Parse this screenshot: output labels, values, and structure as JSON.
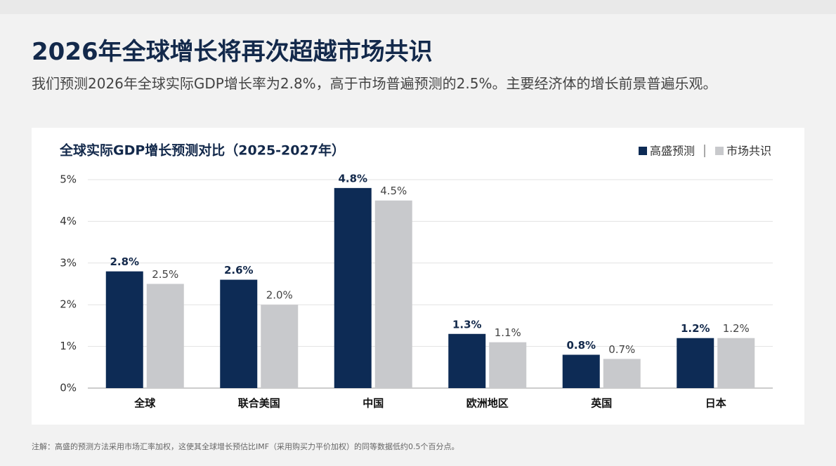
{
  "header": {
    "title": "2026年全球增长将再次超越市场共识",
    "subtitle": "我们预测2026年全球实际GDP增长率为2.8%，高于市场普遍预测的2.5%。主要经济体的增长前景普遍乐观。"
  },
  "chart_data": {
    "type": "bar",
    "title": "全球实际GDP增长预测对比（2025-2027年）",
    "categories": [
      "全球",
      "联合美国",
      "中国",
      "欧洲地区",
      "英国",
      "日本"
    ],
    "series": [
      {
        "name": "高盛预测",
        "color": "#0d2b55",
        "values": [
          2.8,
          2.6,
          4.8,
          1.3,
          0.8,
          1.2
        ],
        "value_labels": [
          "2.8%",
          "2.6%",
          "4.8%",
          "1.3%",
          "0.8%",
          "1.2%"
        ]
      },
      {
        "name": "市场共识",
        "color": "#c8c9cc",
        "values": [
          2.5,
          2.0,
          4.5,
          1.1,
          0.7,
          1.2
        ],
        "value_labels": [
          "2.5%",
          "2.0%",
          "4.5%",
          "1.1%",
          "0.7%",
          "1.2%"
        ]
      }
    ],
    "ylim": [
      0,
      5
    ],
    "yticks": [
      {
        "value": 0,
        "label": "0%"
      },
      {
        "value": 1,
        "label": "1%"
      },
      {
        "value": 2,
        "label": "2%"
      },
      {
        "value": 3,
        "label": "3%"
      },
      {
        "value": 4,
        "label": "4%"
      },
      {
        "value": 5,
        "label": "5%"
      }
    ],
    "grid": true,
    "legend": "top-right"
  },
  "note": "注解：高盛的预测方法采用市场汇率加权，这使其全球增长预估比IMF（采用购买力平价加权）的同等数据低约0.5个百分点。"
}
